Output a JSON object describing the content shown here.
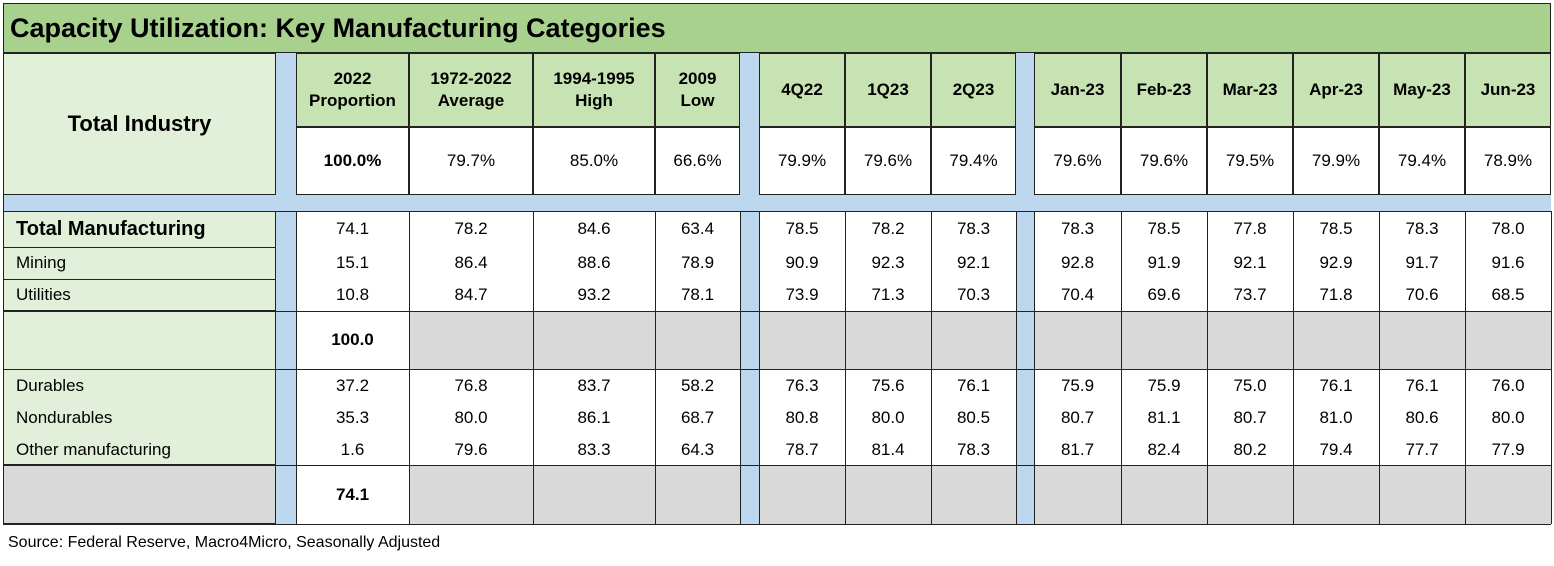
{
  "title": "Capacity Utilization: Key Manufacturing Categories",
  "header": {
    "row_label": "Total Industry",
    "columns": [
      {
        "line1": "2022",
        "line2": "Proportion"
      },
      {
        "line1": "1972-2022",
        "line2": "Average"
      },
      {
        "line1": "1994-1995",
        "line2": "High"
      },
      {
        "line1": "2009",
        "line2": "Low"
      },
      {
        "line1": "4Q22",
        "line2": ""
      },
      {
        "line1": "1Q23",
        "line2": ""
      },
      {
        "line1": "2Q23",
        "line2": ""
      },
      {
        "line1": "Jan-23",
        "line2": ""
      },
      {
        "line1": "Feb-23",
        "line2": ""
      },
      {
        "line1": "Mar-23",
        "line2": ""
      },
      {
        "line1": "Apr-23",
        "line2": ""
      },
      {
        "line1": "May-23",
        "line2": ""
      },
      {
        "line1": "Jun-23",
        "line2": ""
      }
    ],
    "total_industry_values": [
      "100.0%",
      "79.7%",
      "85.0%",
      "66.6%",
      "79.9%",
      "79.6%",
      "79.4%",
      "79.6%",
      "79.6%",
      "79.5%",
      "79.9%",
      "79.4%",
      "78.9%"
    ]
  },
  "group1": {
    "rows": [
      {
        "label": "Total Manufacturing",
        "values": [
          "74.1",
          "78.2",
          "84.6",
          "63.4",
          "78.5",
          "78.2",
          "78.3",
          "78.3",
          "78.5",
          "77.8",
          "78.5",
          "78.3",
          "78.0"
        ]
      },
      {
        "label": "Mining",
        "values": [
          "15.1",
          "86.4",
          "88.6",
          "78.9",
          "90.9",
          "92.3",
          "92.1",
          "92.8",
          "91.9",
          "92.1",
          "92.9",
          "91.7",
          "91.6"
        ]
      },
      {
        "label": "Utilities",
        "values": [
          "10.8",
          "84.7",
          "93.2",
          "78.1",
          "73.9",
          "71.3",
          "70.3",
          "70.4",
          "69.6",
          "73.7",
          "71.8",
          "70.6",
          "68.5"
        ]
      }
    ],
    "total": "100.0"
  },
  "group2": {
    "rows": [
      {
        "label": "Durables",
        "values": [
          "37.2",
          "76.8",
          "83.7",
          "58.2",
          "76.3",
          "75.6",
          "76.1",
          "75.9",
          "75.9",
          "75.0",
          "76.1",
          "76.1",
          "76.0"
        ]
      },
      {
        "label": "Nondurables",
        "values": [
          "35.3",
          "80.0",
          "86.1",
          "68.7",
          "80.8",
          "80.0",
          "80.5",
          "80.7",
          "81.1",
          "80.7",
          "81.0",
          "80.6",
          "80.0"
        ]
      },
      {
        "label": "Other manufacturing",
        "values": [
          "1.6",
          "79.6",
          "83.3",
          "64.3",
          "78.7",
          "81.4",
          "78.3",
          "81.7",
          "82.4",
          "80.2",
          "79.4",
          "77.7",
          "77.9"
        ]
      }
    ],
    "total": "74.1"
  },
  "source": "Source: Federal Reserve, Macro4Micro, Seasonally Adjusted",
  "colors": {
    "title_bg": "#a9d18e",
    "header_bg": "#c8e3b3",
    "label_bg": "#e2f0d9",
    "divider_blue": "#bdd7ee",
    "filler_gray": "#d9d9d9"
  }
}
